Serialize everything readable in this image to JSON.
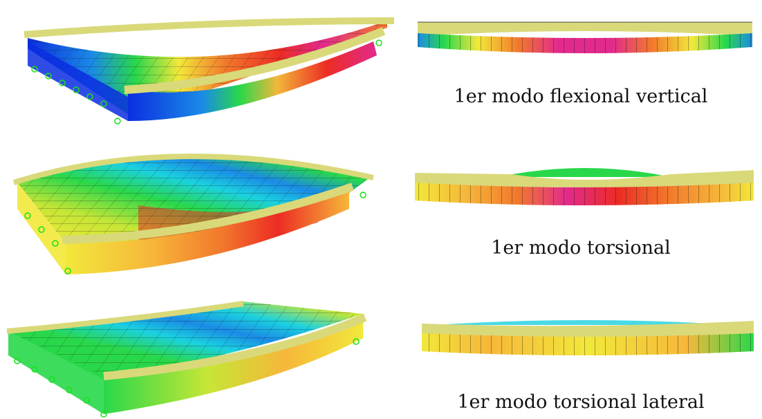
{
  "modes": [
    {
      "caption": "1er modo flexional vertical"
    },
    {
      "caption": "1er modo torsional"
    },
    {
      "caption": "1er modo torsional lateral"
    }
  ],
  "colors": {
    "contour": [
      "#0b2ee0",
      "#1a8be6",
      "#1bd1e0",
      "#29d84a",
      "#c6e636",
      "#f2e83b",
      "#f6b73a",
      "#f2792c",
      "#ec2c24",
      "#e22a8c"
    ],
    "edge_beam": "#d9d97a",
    "support": "#19e119",
    "mesh": "#111111"
  }
}
